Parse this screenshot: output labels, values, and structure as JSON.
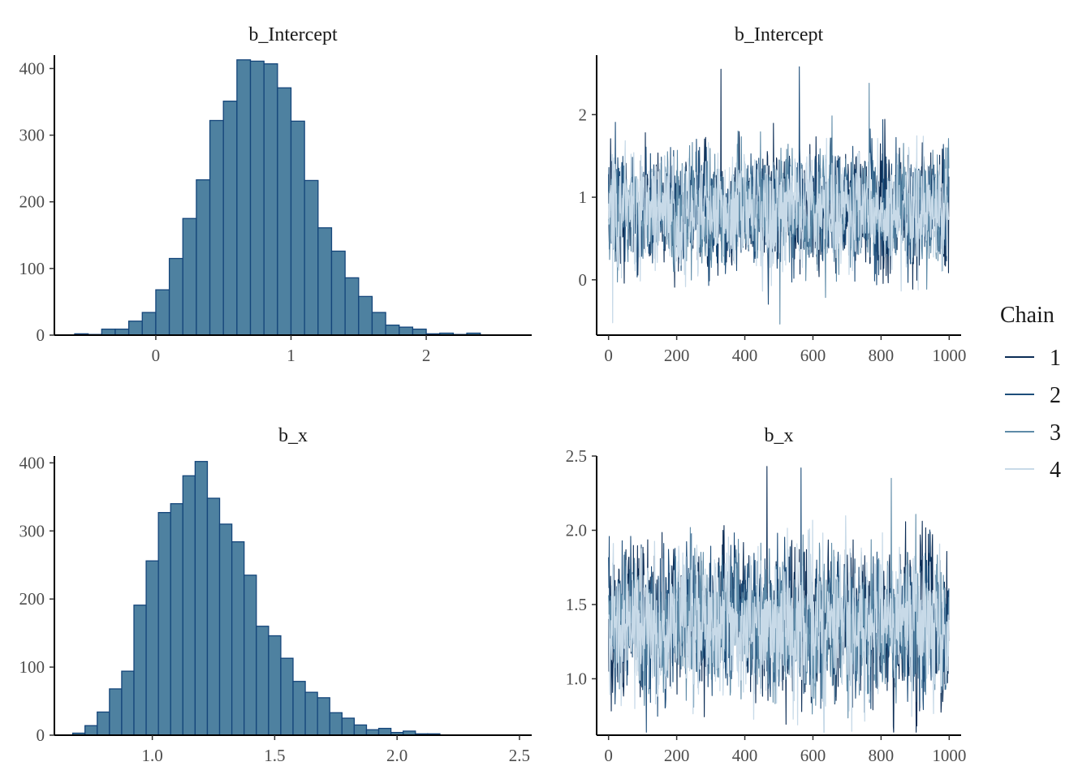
{
  "chart_data": [
    {
      "type": "bar",
      "title": "b_Intercept",
      "bin_width": 0.1,
      "bins_start": -0.6,
      "values": [
        2,
        1,
        9,
        9,
        21,
        34,
        68,
        115,
        175,
        233,
        322,
        351,
        413,
        411,
        407,
        371,
        321,
        232,
        161,
        126,
        86,
        58,
        34,
        15,
        12,
        9,
        2,
        3,
        1,
        3
      ],
      "xlim": [
        -0.75,
        2.78
      ],
      "ylim": [
        0,
        420
      ],
      "xticks": [
        0,
        1,
        2
      ],
      "xtick_labels": [
        "0",
        "1",
        "2"
      ],
      "yticks": [
        0,
        100,
        200,
        300,
        400
      ],
      "ytick_labels": [
        "0",
        "100",
        "200",
        "300",
        "400"
      ],
      "fill_color": "#4e81a0",
      "edge_color": "#14457a"
    },
    {
      "type": "line",
      "title": "b_Intercept",
      "n_draws": 1000,
      "xlim": [
        -35,
        1035
      ],
      "ylim": [
        -0.67,
        2.72
      ],
      "xticks": [
        0,
        200,
        400,
        600,
        800,
        1000
      ],
      "xtick_labels": [
        "0",
        "200",
        "400",
        "600",
        "800",
        "1000"
      ],
      "yticks": [
        0,
        1,
        2
      ],
      "ytick_labels": [
        "0",
        "1",
        "2"
      ],
      "center": 0.86,
      "sd": 0.33,
      "peaks": [
        {
          "x": 330,
          "y": 2.55
        },
        {
          "x": 560,
          "y": 2.58
        },
        {
          "x": 765,
          "y": 2.38
        },
        {
          "x": 12,
          "y": -0.52
        }
      ],
      "series": [
        {
          "name": "1",
          "color": "#0b2c55"
        },
        {
          "name": "2",
          "color": "#1d4d7a"
        },
        {
          "name": "3",
          "color": "#5e8ba8"
        },
        {
          "name": "4",
          "color": "#c8dae8"
        }
      ]
    },
    {
      "type": "bar",
      "title": "b_x",
      "bin_width": 0.05,
      "bins_start": 0.675,
      "values": [
        3,
        14,
        34,
        68,
        94,
        191,
        256,
        327,
        340,
        381,
        402,
        348,
        310,
        284,
        235,
        160,
        146,
        113,
        79,
        63,
        55,
        33,
        25,
        15,
        8,
        10,
        4,
        6,
        2,
        2
      ],
      "xlim": [
        0.6,
        2.55
      ],
      "ylim": [
        0,
        410
      ],
      "xticks": [
        1.0,
        1.5,
        2.0,
        2.5
      ],
      "xtick_labels": [
        "1.0",
        "1.5",
        "2.0",
        "2.5"
      ],
      "yticks": [
        0,
        100,
        200,
        300,
        400
      ],
      "ytick_labels": [
        "0",
        "100",
        "200",
        "300",
        "400"
      ],
      "fill_color": "#4e81a0",
      "edge_color": "#14457a"
    },
    {
      "type": "line",
      "title": "b_x",
      "n_draws": 1000,
      "xlim": [
        -35,
        1035
      ],
      "ylim": [
        0.62,
        2.5
      ],
      "xticks": [
        0,
        200,
        400,
        600,
        800,
        1000
      ],
      "xtick_labels": [
        "0",
        "200",
        "400",
        "600",
        "800",
        "1000"
      ],
      "yticks": [
        1.0,
        1.5,
        2.0,
        2.5
      ],
      "ytick_labels": [
        "1.0",
        "1.5",
        "2.0",
        "2.5"
      ],
      "center": 1.37,
      "sd": 0.23,
      "peaks": [
        {
          "x": 465,
          "y": 2.43
        },
        {
          "x": 565,
          "y": 2.42
        },
        {
          "x": 830,
          "y": 2.35
        },
        {
          "x": 555,
          "y": 0.69
        }
      ],
      "series": [
        {
          "name": "1",
          "color": "#0b2c55"
        },
        {
          "name": "2",
          "color": "#1d4d7a"
        },
        {
          "name": "3",
          "color": "#5e8ba8"
        },
        {
          "name": "4",
          "color": "#c8dae8"
        }
      ]
    }
  ],
  "legend": {
    "title": "Chain",
    "items": [
      {
        "label": "1",
        "color": "#0b2c55"
      },
      {
        "label": "2",
        "color": "#1d4d7a"
      },
      {
        "label": "3",
        "color": "#5e8ba8"
      },
      {
        "label": "4",
        "color": "#c8dae8"
      }
    ]
  }
}
